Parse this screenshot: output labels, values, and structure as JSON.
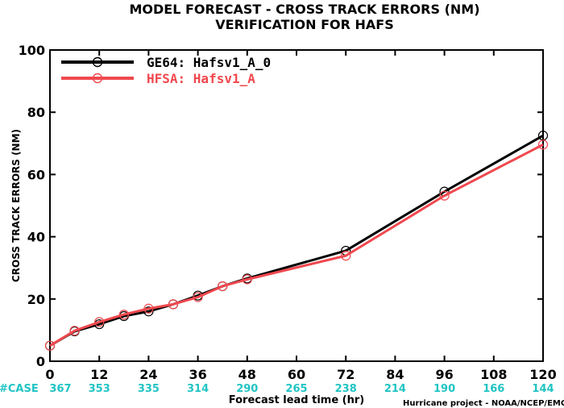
{
  "chart_data": {
    "type": "line",
    "title": "MODEL FORECAST - CROSS TRACK ERRORS (NM)",
    "subtitle": "VERIFICATION FOR HAFS",
    "ylabel": "CROSS TRACK ERRORS (NM)",
    "xlabel": "Forecast lead time (hr)",
    "credit": "Hurricane project - NOAA/NCEP/EMC",
    "ylim": [
      0,
      100
    ],
    "xlim": [
      0,
      120
    ],
    "yticks": [
      "0",
      "20",
      "40",
      "60",
      "80",
      "100"
    ],
    "xticks": [
      "0",
      "12",
      "24",
      "36",
      "48",
      "60",
      "72",
      "84",
      "96",
      "108",
      "120"
    ],
    "x": [
      0,
      6,
      12,
      18,
      24,
      30,
      36,
      42,
      48,
      72,
      96,
      120
    ],
    "series": [
      {
        "name": "GE64: Hafsv1_A_0",
        "color": "#000000",
        "values": [
          5.0,
          9.6,
          11.9,
          14.5,
          16.0,
          18.3,
          21.1,
          24.1,
          26.6,
          35.5,
          54.5,
          72.5
        ]
      },
      {
        "name": "HFSA: Hafsv1_A",
        "color": "#f0484e",
        "values": [
          5.0,
          9.8,
          12.6,
          15.0,
          16.9,
          18.3,
          20.6,
          24.1,
          26.3,
          33.9,
          53.2,
          69.6
        ]
      }
    ],
    "case_label": "#CASE",
    "case_counts": [
      "367",
      "353",
      "335",
      "314",
      "290",
      "265",
      "238",
      "214",
      "190",
      "166",
      "144"
    ],
    "case_color": "#22c4c4",
    "grid": false,
    "legend_position": "top-left"
  }
}
